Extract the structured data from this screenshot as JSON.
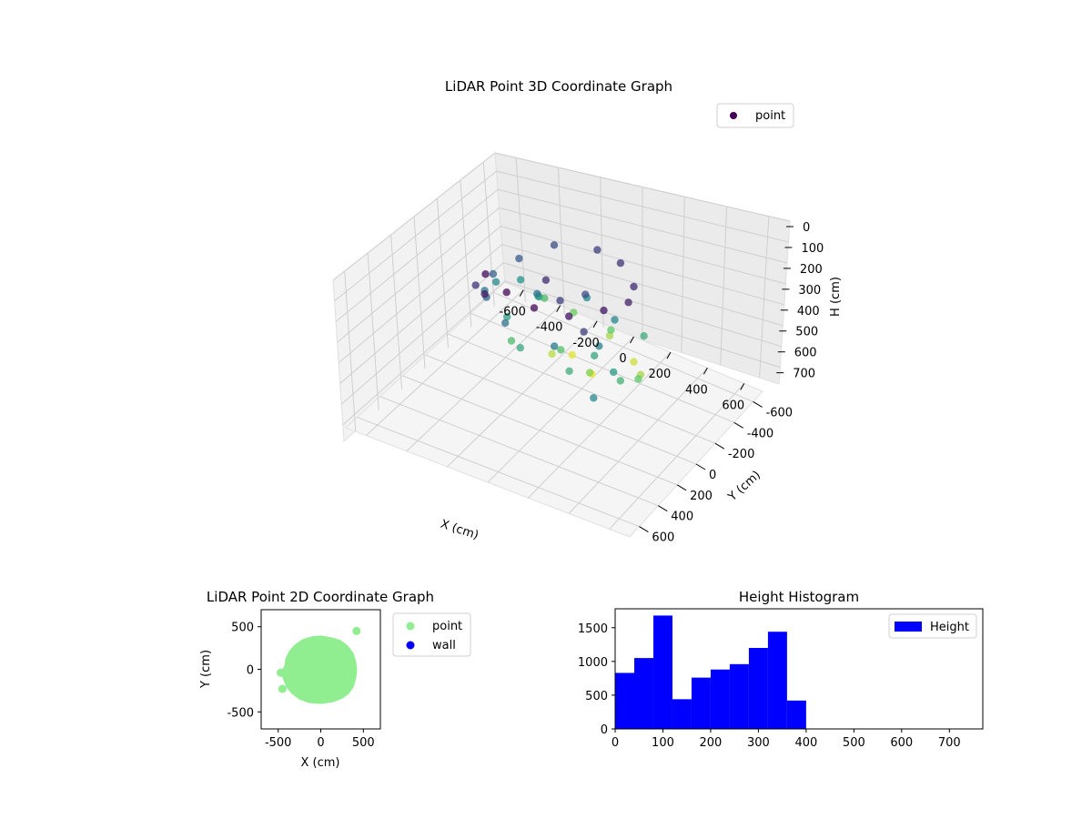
{
  "chart_data": [
    {
      "id": "lidar-3d",
      "type": "scatter",
      "title": "LiDAR Point 3D Coordinate Graph",
      "xlabel": "X (cm)",
      "ylabel": "Y (cm)",
      "zlabel": "H (cm)",
      "xlim": [
        -700,
        700
      ],
      "ylim": [
        -700,
        700
      ],
      "zlim": [
        0,
        780
      ],
      "z_inverted": true,
      "x_ticks": [
        -600,
        -400,
        -200,
        0,
        200,
        400,
        600
      ],
      "y_ticks": [
        -600,
        -400,
        -200,
        0,
        200,
        400,
        600
      ],
      "z_ticks": [
        0,
        100,
        200,
        300,
        400,
        500,
        600,
        700
      ],
      "colormap": "viridis",
      "grid": true,
      "legend": {
        "position": "top-right",
        "entries": [
          "point"
        ]
      },
      "series": [
        {
          "name": "point",
          "points": [
            [
              -250,
              250,
              20
            ],
            [
              -100,
              330,
              10
            ],
            [
              50,
              350,
              20
            ],
            [
              200,
              300,
              30
            ],
            [
              300,
              150,
              40
            ],
            [
              350,
              0,
              60
            ],
            [
              300,
              -150,
              80
            ],
            [
              150,
              -300,
              100
            ],
            [
              0,
              -350,
              120
            ],
            [
              -200,
              -300,
              150
            ],
            [
              -300,
              -150,
              180
            ],
            [
              -350,
              0,
              200
            ],
            [
              -300,
              150,
              220
            ],
            [
              -150,
              250,
              240
            ],
            [
              100,
              250,
              260
            ],
            [
              250,
              100,
              280
            ],
            [
              200,
              -150,
              300
            ],
            [
              0,
              -250,
              320
            ],
            [
              -200,
              -150,
              340
            ],
            [
              -250,
              50,
              360
            ],
            [
              -100,
              200,
              380
            ],
            [
              150,
              200,
              400
            ],
            [
              50,
              100,
              120
            ],
            [
              -50,
              50,
              80
            ],
            [
              100,
              -50,
              150
            ],
            [
              -150,
              -50,
              250
            ],
            [
              350,
              150,
              350
            ],
            [
              300,
              -250,
              400
            ],
            [
              -380,
              -80,
              300
            ],
            [
              -360,
              60,
              260
            ],
            [
              -320,
              -200,
              330
            ],
            [
              -240,
              -280,
              440
            ],
            [
              -120,
              -340,
              500
            ],
            [
              60,
              -360,
              560
            ],
            [
              220,
              -300,
              600
            ],
            [
              320,
              -180,
              560
            ],
            [
              380,
              -40,
              480
            ],
            [
              360,
              100,
              420
            ],
            [
              -50,
              -200,
              620
            ],
            [
              80,
              -150,
              640
            ],
            [
              -100,
              -100,
              580
            ],
            [
              150,
              0,
              520
            ],
            [
              0,
              0,
              460
            ],
            [
              -200,
              100,
              440
            ],
            [
              200,
              50,
              380
            ],
            [
              -300,
              250,
              100
            ],
            [
              -200,
              350,
              50
            ],
            [
              250,
              250,
              120
            ],
            [
              100,
              -300,
              480
            ],
            [
              -250,
              -250,
              420
            ],
            [
              400,
              450,
              300
            ]
          ]
        }
      ]
    },
    {
      "id": "lidar-2d",
      "type": "scatter",
      "title": "LiDAR Point 2D Coordinate Graph",
      "xlabel": "X (cm)",
      "ylabel": "Y (cm)",
      "xlim": [
        -700,
        700
      ],
      "ylim": [
        -700,
        700
      ],
      "x_ticks": [
        -500,
        0,
        500
      ],
      "y_ticks": [
        -500,
        0,
        500
      ],
      "legend": {
        "position": "outside-right",
        "entries": [
          "point",
          "wall"
        ]
      },
      "series": [
        {
          "name": "point",
          "color": "#90ee90",
          "outline": [
            [
              0,
              370
            ],
            [
              120,
              350
            ],
            [
              220,
              320
            ],
            [
              300,
              260
            ],
            [
              360,
              180
            ],
            [
              390,
              80
            ],
            [
              400,
              0
            ],
            [
              390,
              -100
            ],
            [
              360,
              -200
            ],
            [
              310,
              -270
            ],
            [
              240,
              -320
            ],
            [
              140,
              -360
            ],
            [
              0,
              -380
            ],
            [
              -130,
              -370
            ],
            [
              -240,
              -330
            ],
            [
              -320,
              -270
            ],
            [
              -380,
              -200
            ],
            [
              -420,
              -100
            ],
            [
              -440,
              -40
            ],
            [
              -400,
              40
            ],
            [
              -390,
              120
            ],
            [
              -350,
              200
            ],
            [
              -290,
              270
            ],
            [
              -200,
              330
            ],
            [
              -100,
              360
            ]
          ],
          "outliers": [
            [
              420,
              450
            ],
            [
              -470,
              -40
            ],
            [
              -450,
              -230
            ]
          ]
        },
        {
          "name": "wall",
          "color": "#0000ff",
          "points": []
        }
      ]
    },
    {
      "id": "height-hist",
      "type": "bar",
      "title": "Height Histogram",
      "xlim": [
        0,
        770
      ],
      "ylim": [
        0,
        1780
      ],
      "x_ticks": [
        0,
        100,
        200,
        300,
        400,
        500,
        600,
        700
      ],
      "y_ticks": [
        0,
        500,
        1000,
        1500
      ],
      "color": "#0000ff",
      "legend": {
        "position": "top-right",
        "entries": [
          "Height"
        ]
      },
      "bin_width": 40,
      "bins": [
        {
          "start": 0,
          "count": 830
        },
        {
          "start": 40,
          "count": 1050
        },
        {
          "start": 80,
          "count": 1680
        },
        {
          "start": 120,
          "count": 440
        },
        {
          "start": 160,
          "count": 760
        },
        {
          "start": 200,
          "count": 880
        },
        {
          "start": 240,
          "count": 960
        },
        {
          "start": 280,
          "count": 1200
        },
        {
          "start": 320,
          "count": 1440
        },
        {
          "start": 360,
          "count": 420
        },
        {
          "start": 400,
          "count": 0
        },
        {
          "start": 440,
          "count": 0
        },
        {
          "start": 480,
          "count": 0
        },
        {
          "start": 520,
          "count": 0
        },
        {
          "start": 560,
          "count": 0
        },
        {
          "start": 600,
          "count": 0
        },
        {
          "start": 640,
          "count": 0
        },
        {
          "start": 680,
          "count": 0
        },
        {
          "start": 720,
          "count": 0
        }
      ]
    }
  ]
}
